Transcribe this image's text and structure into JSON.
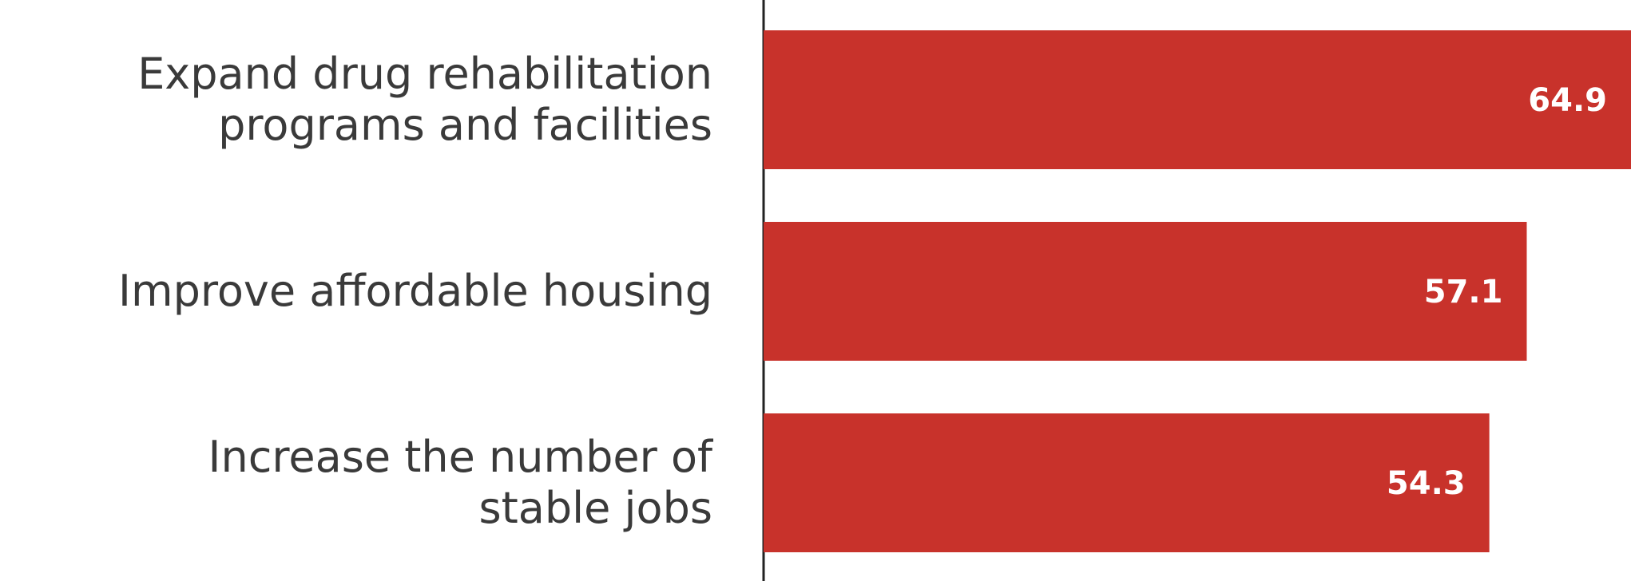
{
  "chart_data": {
    "type": "bar",
    "orientation": "horizontal",
    "categories": [
      [
        "Expand drug rehabilitation",
        "programs and facilities"
      ],
      [
        "Improve affordable housing"
      ],
      [
        "Increase the number of",
        "stable jobs"
      ]
    ],
    "values": [
      64.9,
      57.1,
      54.3
    ],
    "value_labels": [
      "64.9",
      "57.1",
      "54.3"
    ],
    "bar_color": "#c8322b",
    "axis_color": "#222222",
    "label_color": "#3a3a3a",
    "value_label_color": "#ffffff",
    "title": "",
    "xlabel": "",
    "ylabel": "",
    "grid": false,
    "legend": "none",
    "xlim": [
      0,
      64.9
    ]
  }
}
